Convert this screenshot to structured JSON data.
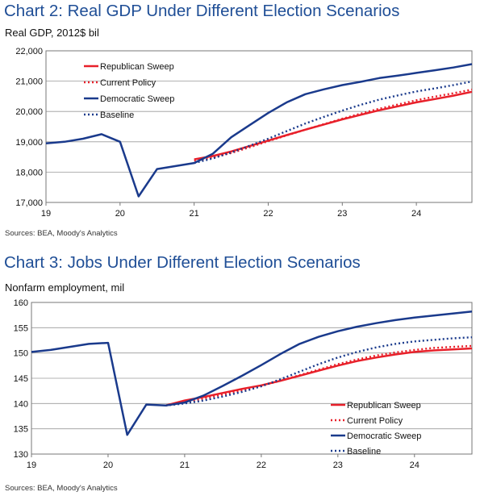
{
  "chart_data": [
    {
      "type": "line",
      "title": "Chart 2: Real GDP Under Different Election Scenarios",
      "subtitle": "Real GDP, 2012$ bil",
      "source": "Sources: BEA, Moody's Analytics",
      "xlim": [
        19,
        24.75
      ],
      "ylim": [
        17000,
        22000
      ],
      "x_ticks": [
        19,
        20,
        21,
        22,
        23,
        24
      ],
      "x_tick_labels": [
        "19",
        "20",
        "21",
        "22",
        "23",
        "24"
      ],
      "y_ticks": [
        17000,
        18000,
        19000,
        20000,
        21000,
        22000
      ],
      "y_tick_labels": [
        "17,000",
        "18,000",
        "19,000",
        "20,000",
        "21,000",
        "22,000"
      ],
      "grid": true,
      "legend_position": "top-left",
      "series": [
        {
          "name": "Republican Sweep",
          "color": "#e8202a",
          "style": "solid",
          "points": [
            [
              21,
              18420
            ],
            [
              21.25,
              18530
            ],
            [
              21.5,
              18680
            ],
            [
              21.75,
              18860
            ],
            [
              22,
              19040
            ],
            [
              22.25,
              19220
            ],
            [
              22.5,
              19400
            ],
            [
              22.75,
              19570
            ],
            [
              23,
              19740
            ],
            [
              23.25,
              19890
            ],
            [
              23.5,
              20040
            ],
            [
              23.75,
              20170
            ],
            [
              24,
              20300
            ],
            [
              24.25,
              20410
            ],
            [
              24.5,
              20520
            ],
            [
              24.75,
              20650
            ]
          ]
        },
        {
          "name": "Current Policy",
          "color": "#e8202a",
          "style": "dotted",
          "points": [
            [
              21,
              18380
            ],
            [
              21.25,
              18480
            ],
            [
              21.5,
              18630
            ],
            [
              21.75,
              18820
            ],
            [
              22,
              19020
            ],
            [
              22.25,
              19210
            ],
            [
              22.5,
              19400
            ],
            [
              22.75,
              19580
            ],
            [
              23,
              19760
            ],
            [
              23.25,
              19930
            ],
            [
              23.5,
              20090
            ],
            [
              23.75,
              20230
            ],
            [
              24,
              20370
            ],
            [
              24.25,
              20490
            ],
            [
              24.5,
              20600
            ],
            [
              24.75,
              20720
            ]
          ]
        },
        {
          "name": "Democratic Sweep",
          "color": "#1a3a8c",
          "style": "solid",
          "points": [
            [
              19,
              18950
            ],
            [
              19.25,
              19000
            ],
            [
              19.5,
              19100
            ],
            [
              19.75,
              19250
            ],
            [
              20,
              19000
            ],
            [
              20.25,
              17200
            ],
            [
              20.5,
              18100
            ],
            [
              20.75,
              18200
            ],
            [
              21,
              18300
            ],
            [
              21.25,
              18600
            ],
            [
              21.5,
              19150
            ],
            [
              21.75,
              19550
            ],
            [
              22,
              19950
            ],
            [
              22.25,
              20300
            ],
            [
              22.5,
              20570
            ],
            [
              22.75,
              20730
            ],
            [
              23,
              20870
            ],
            [
              23.25,
              20980
            ],
            [
              23.5,
              21100
            ],
            [
              23.75,
              21180
            ],
            [
              24,
              21270
            ],
            [
              24.25,
              21360
            ],
            [
              24.5,
              21450
            ],
            [
              24.75,
              21560
            ]
          ]
        },
        {
          "name": "Baseline",
          "color": "#1a3a8c",
          "style": "dotted",
          "points": [
            [
              21,
              18300
            ],
            [
              21.25,
              18450
            ],
            [
              21.5,
              18650
            ],
            [
              21.75,
              18870
            ],
            [
              22,
              19100
            ],
            [
              22.25,
              19350
            ],
            [
              22.5,
              19600
            ],
            [
              22.75,
              19820
            ],
            [
              23,
              20030
            ],
            [
              23.25,
              20220
            ],
            [
              23.5,
              20390
            ],
            [
              23.75,
              20530
            ],
            [
              24,
              20660
            ],
            [
              24.25,
              20760
            ],
            [
              24.5,
              20870
            ],
            [
              24.75,
              20990
            ]
          ]
        }
      ]
    },
    {
      "type": "line",
      "title": "Chart 3: Jobs Under Different Election Scenarios",
      "subtitle": "Nonfarm employment, mil",
      "source": "Sources: BEA, Moody's Analytics",
      "xlim": [
        19,
        24.75
      ],
      "ylim": [
        130,
        160
      ],
      "x_ticks": [
        19,
        20,
        21,
        22,
        23,
        24
      ],
      "x_tick_labels": [
        "19",
        "20",
        "21",
        "22",
        "23",
        "24"
      ],
      "y_ticks": [
        130,
        135,
        140,
        145,
        150,
        155,
        160
      ],
      "y_tick_labels": [
        "130",
        "135",
        "140",
        "145",
        "150",
        "155",
        "160"
      ],
      "grid": true,
      "legend_position": "bottom-right",
      "series": [
        {
          "name": "Republican Sweep",
          "color": "#e8202a",
          "style": "solid",
          "points": [
            [
              20.75,
              139.6
            ],
            [
              21,
              140.6
            ],
            [
              21.25,
              141.3
            ],
            [
              21.5,
              142.1
            ],
            [
              21.75,
              142.9
            ],
            [
              22,
              143.6
            ],
            [
              22.25,
              144.5
            ],
            [
              22.5,
              145.5
            ],
            [
              22.75,
              146.5
            ],
            [
              23,
              147.5
            ],
            [
              23.25,
              148.4
            ],
            [
              23.5,
              149.1
            ],
            [
              23.75,
              149.7
            ],
            [
              24,
              150.2
            ],
            [
              24.25,
              150.5
            ],
            [
              24.5,
              150.7
            ],
            [
              24.75,
              150.9
            ]
          ]
        },
        {
          "name": "Current Policy",
          "color": "#e8202a",
          "style": "dotted",
          "points": [
            [
              20.75,
              139.6
            ],
            [
              21,
              140.3
            ],
            [
              21.25,
              141
            ],
            [
              21.5,
              141.8
            ],
            [
              21.75,
              142.6
            ],
            [
              22,
              143.5
            ],
            [
              22.25,
              144.5
            ],
            [
              22.5,
              145.6
            ],
            [
              22.75,
              146.7
            ],
            [
              23,
              147.8
            ],
            [
              23.25,
              148.7
            ],
            [
              23.5,
              149.5
            ],
            [
              23.75,
              150.1
            ],
            [
              24,
              150.6
            ],
            [
              24.25,
              151
            ],
            [
              24.5,
              151.2
            ],
            [
              24.75,
              151.4
            ]
          ]
        },
        {
          "name": "Democratic Sweep",
          "color": "#1a3a8c",
          "style": "solid",
          "points": [
            [
              19,
              150.2
            ],
            [
              19.25,
              150.6
            ],
            [
              19.5,
              151.2
            ],
            [
              19.75,
              151.8
            ],
            [
              20,
              152
            ],
            [
              20.25,
              133.8
            ],
            [
              20.5,
              139.8
            ],
            [
              20.75,
              139.6
            ],
            [
              21,
              140.2
            ],
            [
              21.25,
              141.6
            ],
            [
              21.5,
              143.5
            ],
            [
              21.75,
              145.5
            ],
            [
              22,
              147.6
            ],
            [
              22.25,
              149.8
            ],
            [
              22.5,
              151.8
            ],
            [
              22.75,
              153.2
            ],
            [
              23,
              154.3
            ],
            [
              23.25,
              155.2
            ],
            [
              23.5,
              155.9
            ],
            [
              23.75,
              156.5
            ],
            [
              24,
              157
            ],
            [
              24.25,
              157.4
            ],
            [
              24.5,
              157.8
            ],
            [
              24.75,
              158.2
            ]
          ]
        },
        {
          "name": "Baseline",
          "color": "#1a3a8c",
          "style": "dotted",
          "points": [
            [
              20.75,
              139.6
            ],
            [
              21,
              140
            ],
            [
              21.25,
              140.6
            ],
            [
              21.5,
              141.4
            ],
            [
              21.75,
              142.3
            ],
            [
              22,
              143.4
            ],
            [
              22.25,
              144.8
            ],
            [
              22.5,
              146.3
            ],
            [
              22.75,
              147.8
            ],
            [
              23,
              149.1
            ],
            [
              23.25,
              150.2
            ],
            [
              23.5,
              151.1
            ],
            [
              23.75,
              151.8
            ],
            [
              24,
              152.3
            ],
            [
              24.25,
              152.6
            ],
            [
              24.5,
              152.9
            ],
            [
              24.75,
              153.1
            ]
          ]
        }
      ]
    }
  ]
}
